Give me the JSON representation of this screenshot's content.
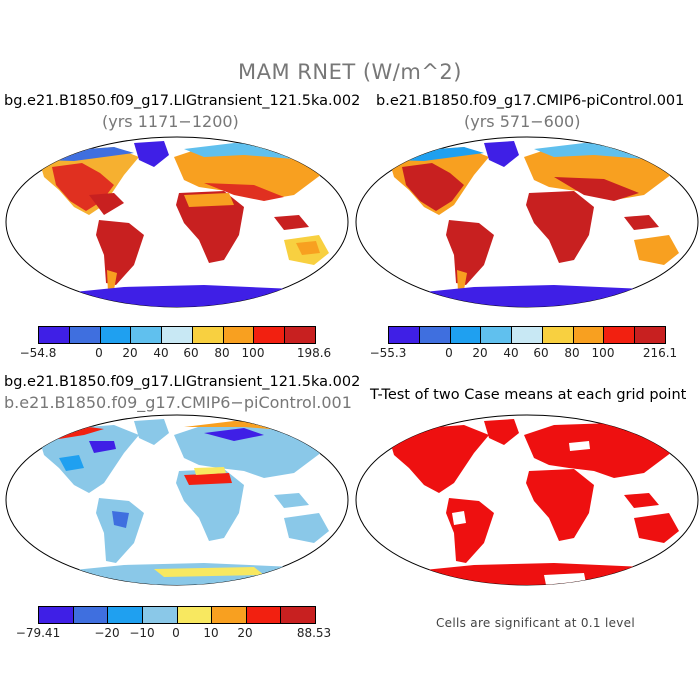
{
  "title": "MAM RNET (W/m^2)",
  "panels": [
    {
      "title": "bg.e21.B1850.f09_g17.LIGtransient_121.5ka.002",
      "subtitle": "(yrs 1171−1200)",
      "colorbar": {
        "colors": [
          "#3f1fe6",
          "#3f6fdf",
          "#1fa0f0",
          "#60c0ee",
          "#c8e8f4",
          "#f8d040",
          "#f8a020",
          "#f22010",
          "#c82020"
        ],
        "labels": [
          "−54.8",
          "0",
          "20",
          "40",
          "60",
          "80",
          "100",
          "198.6"
        ]
      }
    },
    {
      "title": "b.e21.B1850.f09_g17.CMIP6-piControl.001",
      "subtitle": "(yrs 571−600)",
      "colorbar": {
        "colors": [
          "#3f1fe6",
          "#3f6fdf",
          "#1fa0f0",
          "#60c0ee",
          "#c8e8f4",
          "#f8d040",
          "#f8a020",
          "#f22010",
          "#c82020"
        ],
        "labels": [
          "−55.3",
          "0",
          "20",
          "40",
          "60",
          "80",
          "100",
          "216.1"
        ]
      }
    },
    {
      "title": "bg.e21.B1850.f09_g17.LIGtransient_121.5ka.002",
      "subtitle": "b.e21.B1850.f09_g17.CMIP6−piControl.001",
      "colorbar": {
        "colors": [
          "#3f1fe6",
          "#3f6fdf",
          "#1fa0f0",
          "#8ac8e8",
          "#f8e860",
          "#f8a020",
          "#f22010",
          "#c82020"
        ],
        "labels": [
          "−79.41",
          "−20",
          "−10",
          "0",
          "10",
          "20",
          "88.53"
        ]
      }
    },
    {
      "title": "T-Test of two Case means at each grid point",
      "note": "Cells are significant at 0.1 level"
    }
  ]
}
